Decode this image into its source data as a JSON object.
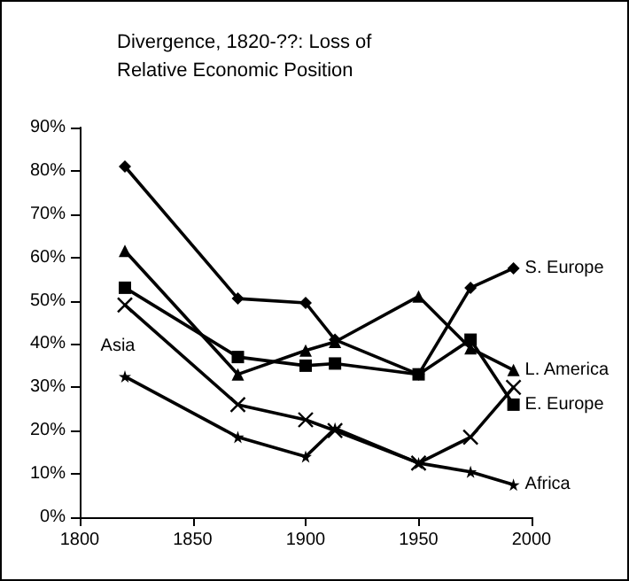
{
  "chart_data": {
    "type": "line",
    "title": "Divergence, 1820-??: Loss of Relative Economic Position",
    "x": [
      1820,
      1870,
      1900,
      1913,
      1950,
      1973,
      1992
    ],
    "series": [
      {
        "name": "S. Europe",
        "color": "#000000",
        "marker": "diamond",
        "values": [
          81,
          50.5,
          49.5,
          41,
          33,
          53,
          57.5
        ]
      },
      {
        "name": "L. America",
        "color": "#000000",
        "marker": "triangle",
        "values": [
          61.5,
          33,
          38.5,
          40.5,
          51,
          39,
          34
        ]
      },
      {
        "name": "E. Europe",
        "color": "#000000",
        "marker": "square",
        "values": [
          53,
          37,
          35,
          35.5,
          33,
          41,
          26
        ]
      },
      {
        "name": "Asia",
        "color": "#000000",
        "marker": "cross",
        "values": [
          49,
          26,
          22.5,
          20,
          12.5,
          18.5,
          30
        ]
      },
      {
        "name": "Africa",
        "color": "#000000",
        "marker": "star",
        "values": [
          32.5,
          18.5,
          14,
          20.5,
          12.5,
          10.5,
          7.5
        ]
      }
    ],
    "xlim": [
      1800,
      2000
    ],
    "xticks": [
      1800,
      1850,
      1900,
      1950,
      2000
    ],
    "ylim": [
      0,
      90
    ],
    "yticks": [
      {
        "value": 0,
        "label": "0%"
      },
      {
        "value": 10,
        "label": "10%"
      },
      {
        "value": 20,
        "label": "20%"
      },
      {
        "value": 30,
        "label": "30%"
      },
      {
        "value": 40,
        "label": "40%"
      },
      {
        "value": 50,
        "label": "50%"
      },
      {
        "value": 60,
        "label": "60%"
      },
      {
        "value": 70,
        "label": "70%"
      },
      {
        "value": 80,
        "label": "80%"
      },
      {
        "value": 90,
        "label": "90%"
      }
    ],
    "grid": false,
    "legend": false
  }
}
